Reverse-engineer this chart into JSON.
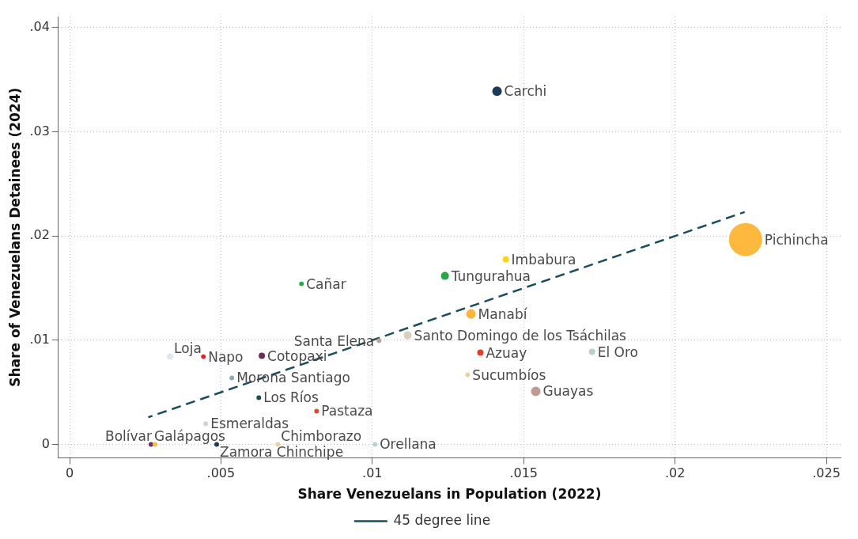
{
  "chart_data": {
    "type": "bubble",
    "xlabel": "Share Venezuelans in Population (2022)",
    "ylabel": "Share of Venezuelans Detainees (2024)",
    "xlim": [
      -0.00037,
      0.02547
    ],
    "ylim": [
      -0.00129,
      0.04106
    ],
    "xticks": [
      0,
      {
        "value": 0.005,
        "label": ".005"
      },
      {
        "value": 0.01,
        "label": ".01"
      },
      {
        "value": 0.015,
        "label": ".015"
      },
      {
        "value": 0.02,
        "label": ".02"
      },
      {
        "value": 0.025,
        "label": ".025"
      }
    ],
    "yticks": [
      0,
      {
        "value": 0.01,
        "label": ".01"
      },
      {
        "value": 0.02,
        "label": ".02"
      },
      {
        "value": 0.03,
        "label": ".03"
      },
      {
        "value": 0.04,
        "label": ".04"
      }
    ],
    "grid": true,
    "legend": "bottom",
    "series": [
      {
        "colors": [
          "#1a3a5c",
          "#fdb93d",
          "#ffd21f",
          "#2ca54a",
          "#2ca54a",
          "#fdb43a",
          "#d9d0c1",
          "#c4a29b",
          "#dde8ef",
          "#e8202a",
          "#6b2f5c",
          "#e0402a",
          "#b7d0d2",
          "#8fa9b5",
          "#e9d39f",
          "#1e4d50",
          "#c09b94",
          "#e04a30",
          "#d9d0c8",
          "#6b2f5c",
          "#fdb93d",
          "#1a3a5c",
          "#e9d39f",
          "#b7d0d2"
        ],
        "x": [
          0.01412,
          0.02233,
          0.01441,
          0.0124,
          0.00766,
          0.01326,
          0.01117,
          0.01022,
          0.00332,
          0.00442,
          0.00635,
          0.01357,
          0.01726,
          0.00536,
          0.01315,
          0.00625,
          0.0154,
          0.00816,
          0.0045,
          0.00269,
          0.00282,
          0.00486,
          0.00688,
          0.01009
        ],
        "values": [
          0.0339,
          0.01966,
          0.01776,
          0.01617,
          0.01541,
          0.01252,
          0.01047,
          0.00994,
          0.00842,
          0.00842,
          0.0085,
          0.0088,
          0.00888,
          0.00638,
          0.00668,
          0.00448,
          0.00509,
          0.00319,
          0.00197,
          0,
          0,
          0,
          0,
          0
        ],
        "sizes": [
          0.082,
          1,
          0.036,
          0.057,
          0.02,
          0.082,
          0.057,
          0.02,
          0.036,
          0.02,
          0.036,
          0.036,
          0.036,
          0.02,
          0.02,
          0.02,
          0.082,
          0.02,
          0.02,
          0.02,
          0.02,
          0.02,
          0.02,
          0.02
        ]
      },
      {
        "name": "45 degree line",
        "type": "line",
        "color": "#1a4e5c",
        "line_style": "dashed",
        "marker": "none",
        "x": [
          0.0026,
          0.0223
        ],
        "values": [
          0.0026,
          0.0223
        ]
      }
    ],
    "annotations": [
      {
        "text": "Carchi",
        "x": 0.01412,
        "y": 0.0339
      },
      {
        "text": "Pichincha",
        "x": 0.02233,
        "y": 0.01966
      },
      {
        "text": "Imbabura",
        "x": 0.01441,
        "y": 0.01776
      },
      {
        "text": "Tungurahua",
        "x": 0.0124,
        "y": 0.01617
      },
      {
        "text": "Cañar",
        "x": 0.00766,
        "y": 0.01541
      },
      {
        "text": "Manabí",
        "x": 0.01326,
        "y": 0.01252
      },
      {
        "text": "Santo Domingo de los Tsáchilas",
        "x": 0.01117,
        "y": 0.01047
      },
      {
        "text": "Santa Elena",
        "x": 0.01022,
        "y": 0.00994
      },
      {
        "text": "Loja",
        "x": 0.00332,
        "y": 0.00842
      },
      {
        "text": "Napo",
        "x": 0.00442,
        "y": 0.00842
      },
      {
        "text": "Cotopaxi",
        "x": 0.00635,
        "y": 0.0085
      },
      {
        "text": "Azuay",
        "x": 0.01357,
        "y": 0.0088
      },
      {
        "text": "El Oro",
        "x": 0.01726,
        "y": 0.00888
      },
      {
        "text": "Morona Santiago",
        "x": 0.00536,
        "y": 0.00638
      },
      {
        "text": "Sucumbíos",
        "x": 0.01315,
        "y": 0.00668
      },
      {
        "text": "Los Ríos",
        "x": 0.00625,
        "y": 0.00448
      },
      {
        "text": "Guayas",
        "x": 0.0154,
        "y": 0.00509
      },
      {
        "text": "Pastaza",
        "x": 0.00816,
        "y": 0.00319
      },
      {
        "text": "Esmeraldas",
        "x": 0.0045,
        "y": 0.00197
      },
      {
        "text": "Galápagos",
        "x": 0.00269,
        "y": 0
      },
      {
        "text": "Bolívar",
        "x": 0.00282,
        "y": 0
      },
      {
        "text": "Zamora Chinchipe",
        "x": 0.00486,
        "y": 0
      },
      {
        "text": "Chimborazo",
        "x": 0.00688,
        "y": 0
      },
      {
        "text": "Orellana",
        "x": 0.01009,
        "y": 0
      }
    ]
  }
}
